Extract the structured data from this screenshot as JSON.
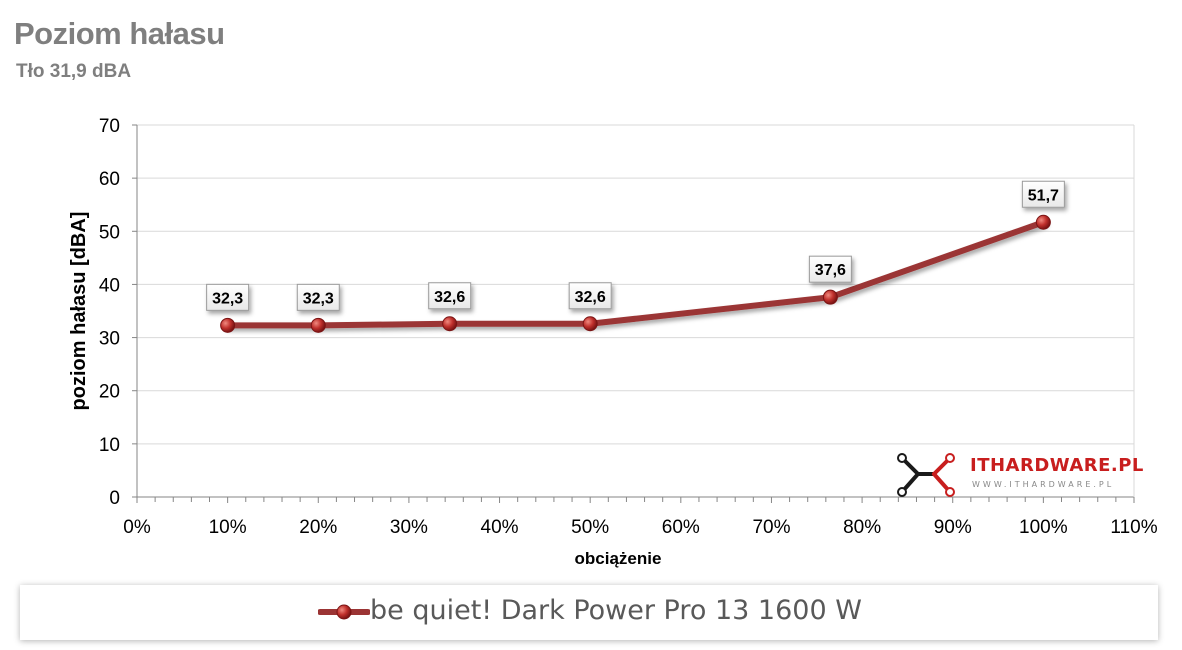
{
  "title": "Poziom hałasu",
  "subtitle": "Tło 31,9 dBA",
  "logo": {
    "text": "ITHARDWARE.PL",
    "url": "WWW.ITHARDWARE.PL"
  },
  "colors": {
    "series": "#9b3434",
    "marker": "#c0302c",
    "grid": "#d9d9d9",
    "axis": "#868686"
  },
  "chart_data": {
    "type": "line",
    "title": "Poziom hałasu",
    "subtitle": "Tło 31,9 dBA",
    "xlabel": "obciążenie",
    "ylabel": "poziom hałasu [dBA]",
    "xlim": [
      0,
      110
    ],
    "ylim": [
      0,
      70
    ],
    "x_ticks": [
      0,
      10,
      20,
      30,
      40,
      50,
      60,
      70,
      80,
      90,
      100,
      110
    ],
    "x_tick_labels": [
      "0%",
      "10%",
      "20%",
      "30%",
      "40%",
      "50%",
      "60%",
      "70%",
      "80%",
      "90%",
      "100%",
      "110%"
    ],
    "y_ticks": [
      0,
      10,
      20,
      30,
      40,
      50,
      60,
      70
    ],
    "y_tick_labels": [
      "0",
      "10",
      "20",
      "30",
      "40",
      "50",
      "60",
      "70"
    ],
    "grid": true,
    "legend": "bottom",
    "series": [
      {
        "name": "be quiet! Dark Power Pro 13 1600 W",
        "x": [
          10,
          20,
          34.5,
          50,
          76.5,
          100
        ],
        "y": [
          32.3,
          32.3,
          32.6,
          32.6,
          37.6,
          51.7
        ],
        "labels": [
          "32,3",
          "32,3",
          "32,6",
          "32,6",
          "37,6",
          "51,7"
        ]
      }
    ]
  }
}
